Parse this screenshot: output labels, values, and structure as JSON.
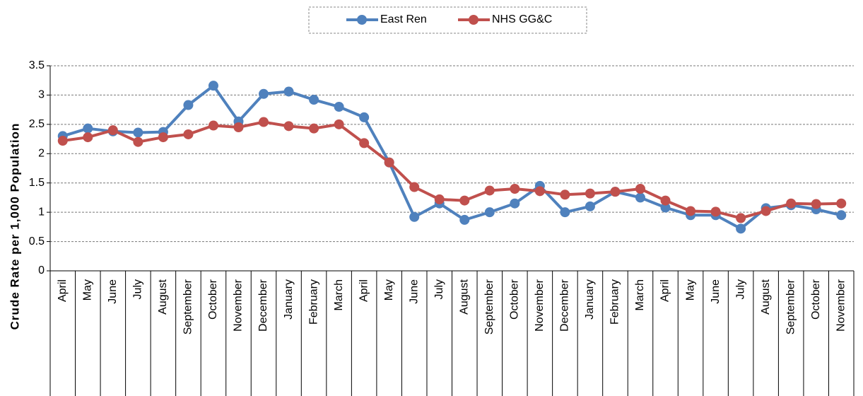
{
  "chart_data": {
    "type": "line",
    "y_label": "Crude Rate per 1,000 Population",
    "categories": [
      "April",
      "May",
      "June",
      "July",
      "August",
      "September",
      "October",
      "November",
      "December",
      "January",
      "February",
      "March",
      "April",
      "May",
      "June",
      "July",
      "August",
      "September",
      "October",
      "November",
      "December",
      "January",
      "February",
      "March",
      "April",
      "May",
      "June",
      "July",
      "August",
      "September",
      "October",
      "November"
    ],
    "series": [
      {
        "name": "East Ren",
        "color": "#4f81bd",
        "values": [
          2.3,
          2.43,
          2.38,
          2.36,
          2.37,
          2.83,
          3.16,
          2.55,
          3.02,
          3.06,
          2.92,
          2.8,
          2.62,
          1.85,
          0.92,
          1.15,
          0.87,
          1.0,
          1.15,
          1.45,
          1.0,
          1.1,
          1.35,
          1.25,
          1.08,
          0.95,
          0.95,
          0.72,
          1.07,
          1.12,
          1.05,
          0.95
        ]
      },
      {
        "name": "NHS GG&C",
        "color": "#c0504d",
        "values": [
          2.22,
          2.28,
          2.4,
          2.2,
          2.28,
          2.33,
          2.48,
          2.45,
          2.54,
          2.47,
          2.43,
          2.5,
          2.18,
          1.85,
          1.43,
          1.22,
          1.2,
          1.37,
          1.4,
          1.36,
          1.3,
          1.32,
          1.35,
          1.4,
          1.2,
          1.02,
          1.01,
          0.9,
          1.02,
          1.15,
          1.14,
          1.15
        ]
      }
    ],
    "ylim": [
      0,
      3.5
    ],
    "yticks": [
      0,
      0.5,
      1,
      1.5,
      2,
      2.5,
      3,
      3.5
    ],
    "grid": true,
    "legend": "top"
  }
}
